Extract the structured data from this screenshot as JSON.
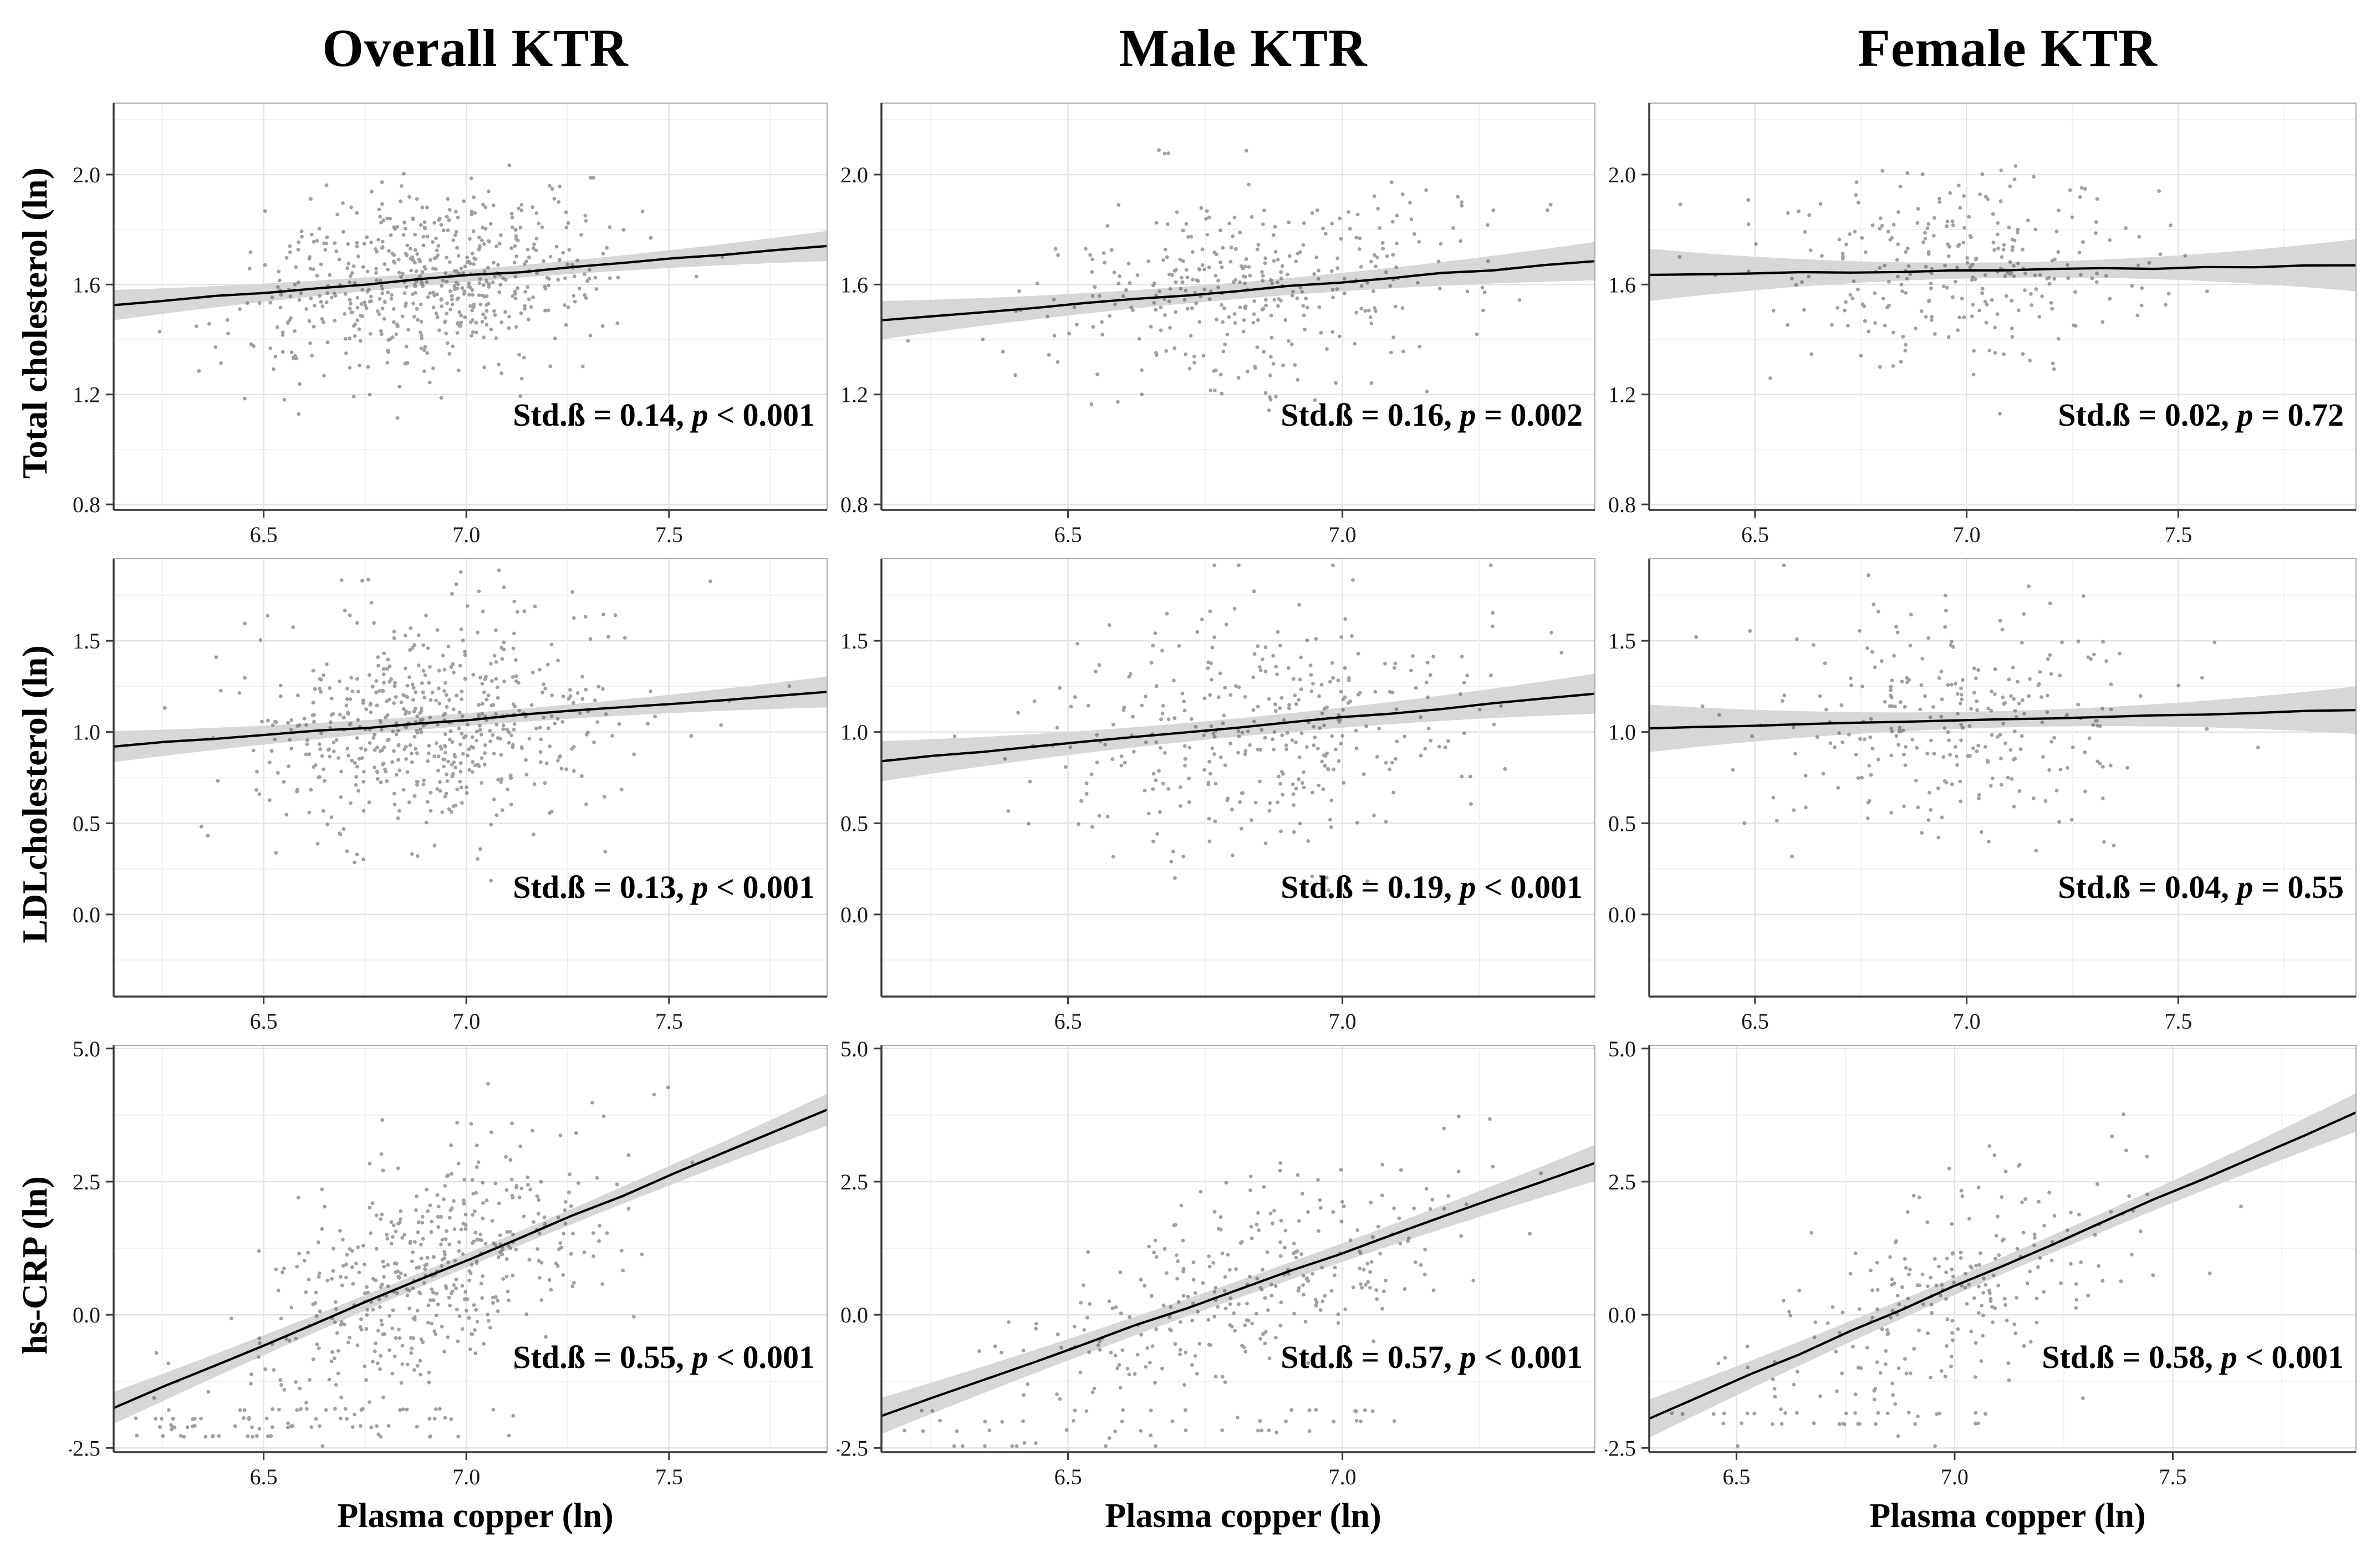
{
  "chart_data": {
    "type": "scatter",
    "xlabel": "Plasma copper (ln)",
    "columns": [
      {
        "title": "Overall KTR"
      },
      {
        "title": "Male KTR"
      },
      {
        "title": "Female KTR"
      }
    ],
    "style": {
      "point_color": "#545454",
      "point_opacity": 0.55,
      "point_radius": 3.4,
      "band_color": "#d7d7d7",
      "line_color": "#000000",
      "grid_major_color": "#e3e3e3",
      "grid_minor_color": "#f1f1f1",
      "axis_color": "#3a3a3a",
      "border_color": "#ababab",
      "tick_label_color": "#1a1a1a",
      "tick_font_size": 40
    },
    "rows": [
      {
        "ylabel": "Total cholesterol (ln)",
        "ylim": [
          0.78,
          2.26
        ],
        "yticks": [
          0.8,
          1.2,
          1.6,
          2.0
        ],
        "cells": [
          {
            "xlim": [
              6.13,
              7.89
            ],
            "xticks": [
              6.5,
              7.0,
              7.5
            ],
            "regression": {
              "x0": 6.13,
              "y0": 1.525,
              "x1": 7.89,
              "y1": 1.74
            },
            "band": {
              "end": 0.055,
              "mid": 0.022
            },
            "scatter": {
              "n": 595,
              "seed": 101,
              "x_mean": 6.92,
              "x_sd": 0.22,
              "resid_sd": 0.17
            },
            "stats": {
              "std_beta": 0.14,
              "p": "< 0.001"
            },
            "annotation": {
              "prefix": "Std.ß = 0.14, ",
              "p": "p",
              "suffix": " < 0.001"
            }
          },
          {
            "xlim": [
              6.16,
              7.46
            ],
            "xticks": [
              6.5,
              7.0
            ],
            "regression": {
              "x0": 6.16,
              "y0": 1.47,
              "x1": 7.46,
              "y1": 1.685
            },
            "band": {
              "end": 0.07,
              "mid": 0.03
            },
            "scatter": {
              "n": 360,
              "seed": 102,
              "x_mean": 6.84,
              "x_sd": 0.2,
              "resid_sd": 0.18
            },
            "stats": {
              "std_beta": 0.16,
              "p": "= 0.002"
            },
            "annotation": {
              "prefix": "Std.ß = 0.16, ",
              "p": "p",
              "suffix": " = 0.002"
            }
          },
          {
            "xlim": [
              6.25,
              7.92
            ],
            "xticks": [
              6.5,
              7.0,
              7.5
            ],
            "regression": {
              "x0": 6.25,
              "y0": 1.635,
              "x1": 7.92,
              "y1": 1.67
            },
            "band": {
              "end": 0.095,
              "mid": 0.028
            },
            "scatter": {
              "n": 285,
              "seed": 103,
              "x_mean": 6.98,
              "x_sd": 0.22,
              "resid_sd": 0.17
            },
            "stats": {
              "std_beta": 0.02,
              "p": "= 0.72"
            },
            "annotation": {
              "prefix": "Std.ß = 0.02, ",
              "p": "p",
              "suffix": " = 0.72"
            }
          }
        ]
      },
      {
        "ylabel": "LDLcholesterol (ln)",
        "ylim": [
          -0.45,
          1.95
        ],
        "yticks": [
          0.0,
          0.5,
          1.0,
          1.5
        ],
        "cells": [
          {
            "xlim": [
              6.13,
              7.89
            ],
            "xticks": [
              6.5,
              7.0,
              7.5
            ],
            "regression": {
              "x0": 6.13,
              "y0": 0.92,
              "x1": 7.89,
              "y1": 1.22
            },
            "band": {
              "end": 0.085,
              "mid": 0.035
            },
            "scatter": {
              "n": 590,
              "seed": 201,
              "x_mean": 6.92,
              "x_sd": 0.22,
              "resid_sd": 0.3
            },
            "stats": {
              "std_beta": 0.13,
              "p": "< 0.001"
            },
            "annotation": {
              "prefix": "Std.ß = 0.13, ",
              "p": "p",
              "suffix": " < 0.001"
            }
          },
          {
            "xlim": [
              6.16,
              7.46
            ],
            "xticks": [
              6.5,
              7.0
            ],
            "regression": {
              "x0": 6.16,
              "y0": 0.84,
              "x1": 7.46,
              "y1": 1.21
            },
            "band": {
              "end": 0.11,
              "mid": 0.05
            },
            "scatter": {
              "n": 355,
              "seed": 202,
              "x_mean": 6.84,
              "x_sd": 0.2,
              "resid_sd": 0.31
            },
            "stats": {
              "std_beta": 0.19,
              "p": "< 0.001"
            },
            "annotation": {
              "prefix": "Std.ß = 0.19, ",
              "p": "p",
              "suffix": " < 0.001"
            }
          },
          {
            "xlim": [
              6.25,
              7.92
            ],
            "xticks": [
              6.5,
              7.0,
              7.5
            ],
            "regression": {
              "x0": 6.25,
              "y0": 1.02,
              "x1": 7.92,
              "y1": 1.12
            },
            "band": {
              "end": 0.13,
              "mid": 0.045
            },
            "scatter": {
              "n": 280,
              "seed": 203,
              "x_mean": 6.98,
              "x_sd": 0.22,
              "resid_sd": 0.3
            },
            "stats": {
              "std_beta": 0.04,
              "p": "= 0.55"
            },
            "annotation": {
              "prefix": "Std.ß = 0.04, ",
              "p": "p",
              "suffix": " = 0.55"
            }
          }
        ]
      },
      {
        "ylabel": "hs-CRP (ln)",
        "ylim": [
          -2.58,
          5.06
        ],
        "yticks": [
          -2.5,
          0.0,
          2.5,
          5.0
        ],
        "cells": [
          {
            "xlim": [
              6.13,
              7.89
            ],
            "xticks": [
              6.5,
              7.0,
              7.5
            ],
            "regression": {
              "x0": 6.13,
              "y0": -1.75,
              "x1": 7.89,
              "y1": 3.85
            },
            "band": {
              "end": 0.3,
              "mid": 0.13
            },
            "scatter": {
              "n": 560,
              "seed": 301,
              "x_mean": 6.92,
              "x_sd": 0.22,
              "resid_sd": 1.05,
              "floor_ys": [
                -1.78,
                -1.95,
                -2.1,
                -2.28
              ],
              "floor_frac": 0.13,
              "floor_xmax": 7.15
            },
            "stats": {
              "std_beta": 0.55,
              "p": "< 0.001"
            },
            "annotation": {
              "prefix": "Std.ß = 0.55, ",
              "p": "p",
              "suffix": " < 0.001"
            }
          },
          {
            "xlim": [
              6.16,
              7.46
            ],
            "xticks": [
              6.5,
              7.0
            ],
            "regression": {
              "x0": 6.16,
              "y0": -1.9,
              "x1": 7.46,
              "y1": 2.85
            },
            "band": {
              "end": 0.34,
              "mid": 0.16
            },
            "scatter": {
              "n": 340,
              "seed": 302,
              "x_mean": 6.84,
              "x_sd": 0.2,
              "resid_sd": 1.0,
              "floor_ys": [
                -1.8,
                -2.0,
                -2.18
              ],
              "floor_frac": 0.12,
              "floor_xmax": 7.1
            },
            "stats": {
              "std_beta": 0.57,
              "p": "< 0.001"
            },
            "annotation": {
              "prefix": "Std.ß = 0.57, ",
              "p": "p",
              "suffix": " < 0.001"
            }
          },
          {
            "xlim": [
              6.3,
              7.92
            ],
            "xticks": [
              6.5,
              7.0,
              7.5
            ],
            "regression": {
              "x0": 6.3,
              "y0": -1.95,
              "x1": 7.92,
              "y1": 3.8
            },
            "band": {
              "end": 0.36,
              "mid": 0.16
            },
            "scatter": {
              "n": 270,
              "seed": 303,
              "x_mean": 6.98,
              "x_sd": 0.2,
              "resid_sd": 0.95,
              "floor_ys": [
                -1.85,
                -2.05
              ],
              "floor_frac": 0.1,
              "floor_xmax": 7.1
            },
            "stats": {
              "std_beta": 0.58,
              "p": "< 0.001"
            },
            "annotation": {
              "prefix": "Std.ß = 0.58, ",
              "p": "p",
              "suffix": " < 0.001"
            }
          }
        ]
      }
    ]
  }
}
